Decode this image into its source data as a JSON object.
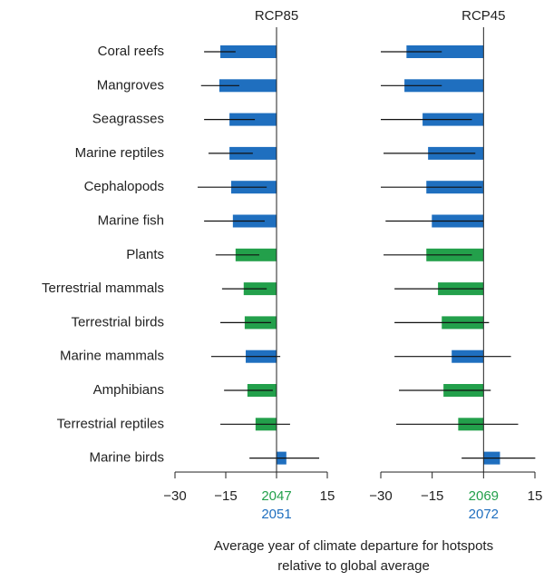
{
  "chart_data": [
    {
      "type": "hbar",
      "title": "RCP85",
      "categories": [
        "Coral reefs",
        "Mangroves",
        "Seagrasses",
        "Marine reptiles",
        "Cephalopods",
        "Marine fish",
        "Plants",
        "Terrestrial mammals",
        "Terrestrial birds",
        "Marine mammals",
        "Amphibians",
        "Terrestrial reptiles",
        "Marine birds"
      ],
      "bar_colors": [
        "#1f6fbf",
        "#1f6fbf",
        "#1f6fbf",
        "#1f6fbf",
        "#1f6fbf",
        "#1f6fbf",
        "#23a04b",
        "#23a04b",
        "#23a04b",
        "#1f6fbf",
        "#23a04b",
        "#23a04b",
        "#1f6fbf"
      ],
      "values": [
        -16.6,
        -16.9,
        -13.9,
        -13.9,
        -13.4,
        -12.9,
        -12.1,
        -9.7,
        -9.4,
        -9.1,
        -8.6,
        -6.2,
        2.9
      ],
      "ci_low": [
        -21.4,
        -22.3,
        -21.4,
        -20.1,
        -23.3,
        -21.4,
        -18,
        -16.1,
        -16.6,
        -19.3,
        -15.5,
        -16.6,
        -8
      ],
      "ci_high": [
        -12.1,
        -11,
        -6.4,
        -7,
        -2.9,
        -3.5,
        -5.1,
        -2.9,
        -1.6,
        1.1,
        -1.1,
        4,
        12.6
      ],
      "xlim": [
        -30,
        15
      ],
      "xticks": [
        {
          "value": -30,
          "label": "−30"
        },
        {
          "value": -15,
          "label": "−15"
        },
        {
          "value": 0,
          "label": "2047"
        },
        15
      ],
      "zero_sublabel": "2051",
      "zero_label_color": "#23a04b",
      "zero_sublabel_color": "#1f6fbf"
    },
    {
      "type": "hbar",
      "title": "RCP45",
      "values": [
        -22.5,
        -23.1,
        -17.8,
        -16.2,
        -16.7,
        -15.1,
        -16.7,
        -13.3,
        -12.2,
        -9.3,
        -11.7,
        -7.4,
        4.8
      ],
      "ci_low": [
        -30,
        -30,
        -30,
        -29.2,
        -30,
        -28.6,
        -29.2,
        -26,
        -26,
        -26,
        -24.7,
        -25.5,
        -6.4
      ],
      "ci_high": [
        -12.2,
        -12.2,
        -3.4,
        -2.4,
        -0.5,
        0,
        -3.4,
        0,
        1.6,
        8,
        2.1,
        10.1,
        15.1
      ],
      "xlim": [
        -30,
        15
      ],
      "xticks": [
        {
          "value": -30,
          "label": "−30"
        },
        {
          "value": -15,
          "label": "−15"
        },
        {
          "value": 0,
          "label": "2069"
        },
        15
      ],
      "zero_sublabel": "2072",
      "zero_label_color": "#23a04b",
      "zero_sublabel_color": "#1f6fbf"
    }
  ],
  "xlabel": [
    "Average year of climate departure for hotspots",
    "relative to global average"
  ]
}
